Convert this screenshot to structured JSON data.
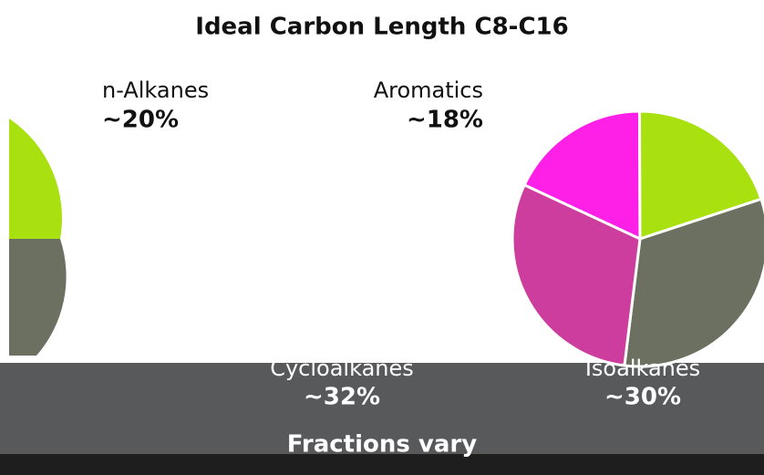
{
  "chart_data": {
    "type": "pie",
    "title": "Ideal Carbon Length C8-C16",
    "categories": [
      "Aromatics",
      "n-Alkanes",
      "Cycloalkanes",
      "Isoalkanes"
    ],
    "values": [
      18,
      20,
      32,
      30
    ],
    "value_labels": [
      "~18%",
      "~20%",
      "~32%",
      "~30%"
    ],
    "colors": [
      "#ff20e8",
      "#a8e010",
      "#6b7060",
      "#cc3d9e"
    ],
    "annotation": "Fractions vary"
  }
}
